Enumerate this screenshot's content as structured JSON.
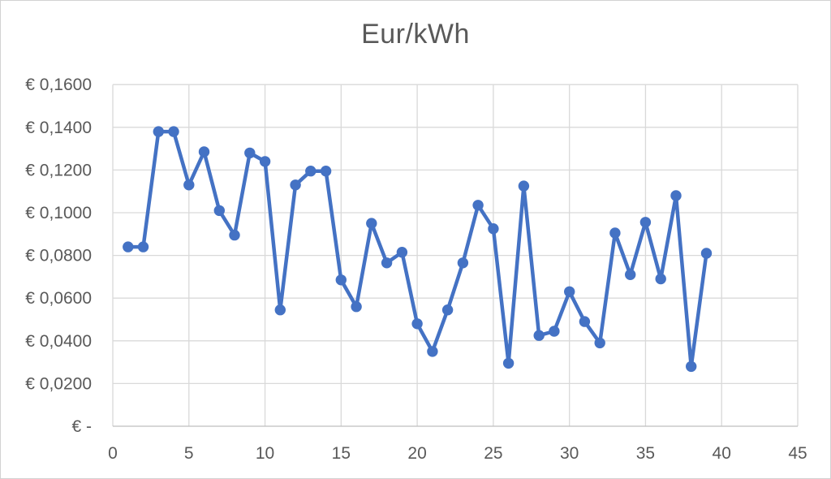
{
  "chart": {
    "background_color": "#ffffff",
    "border_color": "#d2d2d2"
  },
  "chart_data": {
    "type": "line",
    "title": "Eur/kWh",
    "xlabel": "",
    "ylabel": "",
    "legend_position": "none",
    "grid": true,
    "xlim": [
      0,
      45
    ],
    "ylim": [
      0,
      0.16
    ],
    "x_ticks": [
      0,
      5,
      10,
      15,
      20,
      25,
      30,
      35,
      40,
      45
    ],
    "y_ticks": [
      {
        "value": 0.0,
        "label": "€ -"
      },
      {
        "value": 0.02,
        "label": "€ 0,0200"
      },
      {
        "value": 0.04,
        "label": "€ 0,0400"
      },
      {
        "value": 0.06,
        "label": "€ 0,0600"
      },
      {
        "value": 0.08,
        "label": "€ 0,0800"
      },
      {
        "value": 0.1,
        "label": "€ 0,1000"
      },
      {
        "value": 0.12,
        "label": "€ 0,1200"
      },
      {
        "value": 0.14,
        "label": "€ 0,1400"
      },
      {
        "value": 0.16,
        "label": "€ 0,1600"
      }
    ],
    "x": [
      1,
      2,
      3,
      4,
      5,
      6,
      7,
      8,
      9,
      10,
      11,
      12,
      13,
      14,
      15,
      16,
      17,
      18,
      19,
      20,
      21,
      22,
      23,
      24,
      25,
      26,
      27,
      28,
      29,
      30,
      31,
      32,
      33,
      34,
      35,
      36,
      37,
      38,
      39
    ],
    "values": [
      0.084,
      0.084,
      0.138,
      0.138,
      0.113,
      0.1285,
      0.101,
      0.0895,
      0.128,
      0.124,
      0.0545,
      0.113,
      0.1195,
      0.1195,
      0.0685,
      0.056,
      0.095,
      0.0765,
      0.0815,
      0.048,
      0.035,
      0.0545,
      0.0765,
      0.1035,
      0.0925,
      0.0295,
      0.1125,
      0.0425,
      0.0445,
      0.063,
      0.049,
      0.039,
      0.0905,
      0.071,
      0.0955,
      0.069,
      0.108,
      0.028,
      0.081
    ],
    "series_name": "Eur/kWh",
    "line_color": "#4472C4",
    "marker_color": "#4472C4",
    "marker_shape": "circle",
    "gridline_color": "#D9D9D9",
    "axis_line_color": "#BFBFBF",
    "tick_label_color": "#595959",
    "title_color": "#595959"
  }
}
